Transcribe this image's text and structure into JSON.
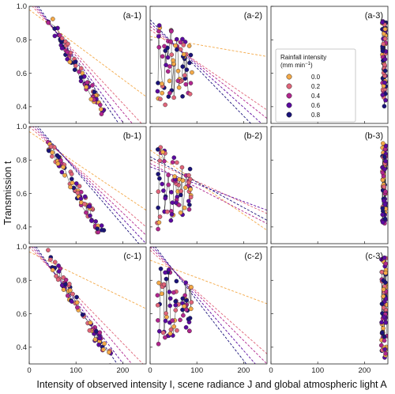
{
  "chart_data": {
    "type": "scatter",
    "xlabel": "Intensity of observed intensity I, scene radiance J and global atmospheric light A",
    "ylabel": "Transmission t",
    "xlim": [
      0,
      250
    ],
    "xticks": [
      0,
      100,
      200
    ],
    "legend": {
      "title_line1": "Rainfall intensity",
      "title_line2": "(mm min",
      "title_sup": "−1",
      "title_close": ")",
      "placement": "inside panel a-3, upper-left",
      "entries": [
        {
          "label": "0.0",
          "color": "#f4a948"
        },
        {
          "label": "0.2",
          "color": "#e0657a"
        },
        {
          "label": "0.4",
          "color": "#b1268e"
        },
        {
          "label": "0.6",
          "color": "#5b0aa0"
        },
        {
          "label": "0.8",
          "color": "#1a137a"
        }
      ]
    },
    "panels": [
      {
        "label": "(a-1)",
        "ylim": [
          0.3,
          1.0
        ],
        "yticks": [
          0.4,
          0.6,
          0.8,
          1.0
        ],
        "xrange": [
          40,
          160
        ],
        "top": 0.93,
        "bottom": 0.36,
        "lines": [
          {
            "rain": "0.0",
            "x0": 0,
            "y0": 0.98,
            "x1": 250,
            "y1": 0.46
          },
          {
            "rain": "0.2",
            "x0": 0,
            "y0": 1.02,
            "x1": 250,
            "y1": 0.27
          },
          {
            "rain": "0.4",
            "x0": 0,
            "y0": 1.04,
            "x1": 250,
            "y1": 0.2
          },
          {
            "rain": "0.6",
            "x0": 0,
            "y0": 1.06,
            "x1": 250,
            "y1": 0.12
          },
          {
            "rain": "0.8",
            "x0": 0,
            "y0": 1.08,
            "x1": 250,
            "y1": 0.06
          }
        ]
      },
      {
        "label": "(a-2)",
        "ylim": [
          0.3,
          1.0
        ],
        "yticks": [
          0.4,
          0.6,
          0.8,
          1.0
        ],
        "xrange": [
          15,
          90
        ],
        "top": 0.94,
        "bottom": 0.38,
        "lines": [
          {
            "rain": "0.0",
            "x0": 0,
            "y0": 0.82,
            "x1": 250,
            "y1": 0.7
          },
          {
            "rain": "0.2",
            "x0": 0,
            "y0": 0.86,
            "x1": 250,
            "y1": 0.38
          },
          {
            "rain": "0.4",
            "x0": 0,
            "y0": 0.88,
            "x1": 250,
            "y1": 0.33
          },
          {
            "rain": "0.6",
            "x0": 0,
            "y0": 0.9,
            "x1": 250,
            "y1": 0.27
          },
          {
            "rain": "0.8",
            "x0": 0,
            "y0": 0.92,
            "x1": 250,
            "y1": 0.2
          }
        ]
      },
      {
        "label": "(a-3)",
        "ylim": [
          0.3,
          1.0
        ],
        "yticks": [
          0.4,
          0.6,
          0.8,
          1.0
        ],
        "xrange": [
          238,
          246
        ],
        "top": 0.92,
        "bottom": 0.4,
        "lines": []
      },
      {
        "label": "(b-1)",
        "ylim": [
          0.3,
          1.0
        ],
        "yticks": [
          0.4,
          0.6,
          0.8,
          1.0
        ],
        "xrange": [
          40,
          160
        ],
        "top": 0.91,
        "bottom": 0.35,
        "lines": [
          {
            "rain": "0.0",
            "x0": 0,
            "y0": 0.97,
            "x1": 250,
            "y1": 0.5
          },
          {
            "rain": "0.2",
            "x0": 0,
            "y0": 1.0,
            "x1": 250,
            "y1": 0.4
          },
          {
            "rain": "0.4",
            "x0": 0,
            "y0": 1.02,
            "x1": 250,
            "y1": 0.35
          },
          {
            "rain": "0.6",
            "x0": 0,
            "y0": 1.04,
            "x1": 250,
            "y1": 0.3
          },
          {
            "rain": "0.8",
            "x0": 0,
            "y0": 1.06,
            "x1": 250,
            "y1": 0.25
          }
        ]
      },
      {
        "label": "(b-2)",
        "ylim": [
          0.3,
          1.0
        ],
        "yticks": [
          0.4,
          0.6,
          0.8,
          1.0
        ],
        "xrange": [
          15,
          90
        ],
        "top": 0.91,
        "bottom": 0.38,
        "lines": [
          {
            "rain": "0.0",
            "x0": 0,
            "y0": 0.86,
            "x1": 250,
            "y1": 0.38
          },
          {
            "rain": "0.2",
            "x0": 0,
            "y0": 0.8,
            "x1": 250,
            "y1": 0.48
          },
          {
            "rain": "0.4",
            "x0": 0,
            "y0": 0.78,
            "x1": 250,
            "y1": 0.42
          },
          {
            "rain": "0.6",
            "x0": 0,
            "y0": 0.76,
            "x1": 250,
            "y1": 0.5
          },
          {
            "rain": "0.8",
            "x0": 0,
            "y0": 0.82,
            "x1": 250,
            "y1": 0.44
          }
        ]
      },
      {
        "label": "(b-3)",
        "ylim": [
          0.3,
          1.0
        ],
        "yticks": [
          0.4,
          0.6,
          0.8,
          1.0
        ],
        "xrange": [
          238,
          246
        ],
        "top": 0.9,
        "bottom": 0.42,
        "lines": []
      },
      {
        "label": "(c-1)",
        "ylim": [
          0.3,
          1.0
        ],
        "yticks": [
          0.4,
          0.6,
          0.8,
          1.0
        ],
        "xrange": [
          40,
          175
        ],
        "top": 0.94,
        "bottom": 0.33,
        "lines": [
          {
            "rain": "0.0",
            "x0": 0,
            "y0": 0.97,
            "x1": 250,
            "y1": 0.63
          },
          {
            "rain": "0.2",
            "x0": 0,
            "y0": 1.0,
            "x1": 250,
            "y1": 0.28
          },
          {
            "rain": "0.4",
            "x0": 0,
            "y0": 1.02,
            "x1": 250,
            "y1": 0.2
          },
          {
            "rain": "0.6",
            "x0": 0,
            "y0": 1.04,
            "x1": 250,
            "y1": 0.12
          },
          {
            "rain": "0.8",
            "x0": 0,
            "y0": 1.06,
            "x1": 250,
            "y1": 0.05
          }
        ]
      },
      {
        "label": "(c-2)",
        "ylim": [
          0.3,
          1.0
        ],
        "yticks": [
          0.4,
          0.6,
          0.8,
          1.0
        ],
        "xrange": [
          15,
          90
        ],
        "top": 0.93,
        "bottom": 0.4,
        "lines": [
          {
            "rain": "0.0",
            "x0": 0,
            "y0": 0.92,
            "x1": 250,
            "y1": 0.66
          },
          {
            "rain": "0.2",
            "x0": 0,
            "y0": 0.98,
            "x1": 250,
            "y1": 0.36
          },
          {
            "rain": "0.4",
            "x0": 0,
            "y0": 1.0,
            "x1": 250,
            "y1": 0.3
          },
          {
            "rain": "0.6",
            "x0": 0,
            "y0": 1.02,
            "x1": 250,
            "y1": 0.22
          },
          {
            "rain": "0.8",
            "x0": 0,
            "y0": 1.04,
            "x1": 250,
            "y1": 0.14
          }
        ]
      },
      {
        "label": "(c-3)",
        "ylim": [
          0.3,
          1.0
        ],
        "yticks": [
          0.4,
          0.6,
          0.8,
          1.0
        ],
        "xrange": [
          236,
          248
        ],
        "top": 0.94,
        "bottom": 0.33,
        "lines": []
      }
    ]
  }
}
